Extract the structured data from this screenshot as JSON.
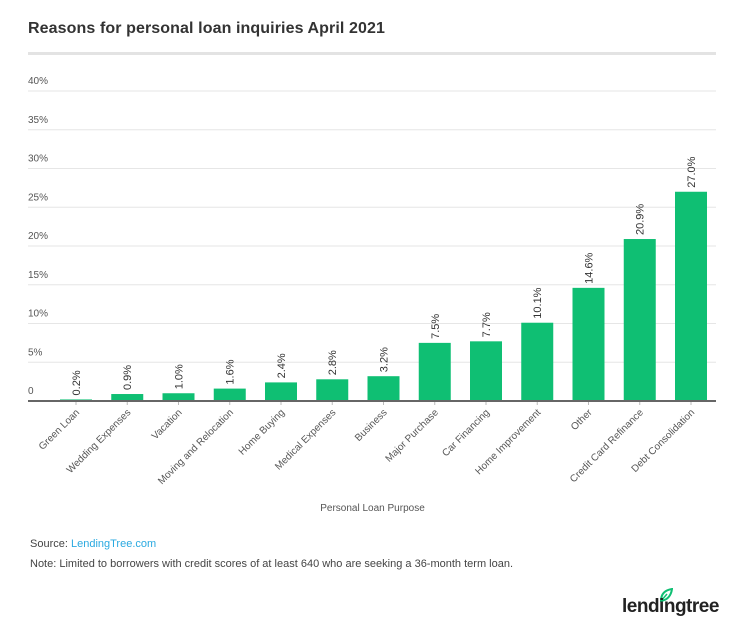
{
  "chart_data": {
    "type": "bar",
    "title": "Reasons for personal loan inquiries April 2021",
    "xlabel": "Personal Loan Purpose",
    "ylabel": "",
    "ylim": [
      0,
      40
    ],
    "yticks": [
      0,
      5,
      10,
      15,
      20,
      25,
      30,
      35,
      40
    ],
    "ytick_labels": [
      "0",
      "5%",
      "10%",
      "15%",
      "20%",
      "25%",
      "30%",
      "35%",
      "40%"
    ],
    "grid": true,
    "categories": [
      "Green Loan",
      "Wedding Expenses",
      "Vacation",
      "Moving and Relocation",
      "Home Buying",
      "Medical Expenses",
      "Business",
      "Major Purchase",
      "Car Financing",
      "Home Improvement",
      "Other",
      "Credit Card Refinance",
      "Debt Consolidation"
    ],
    "values": [
      0.2,
      0.9,
      1.0,
      1.6,
      2.4,
      2.8,
      3.2,
      7.5,
      7.7,
      10.1,
      14.6,
      20.9,
      27.0
    ],
    "data_labels": [
      "0.2%",
      "0.9%",
      "1.0%",
      "1.6%",
      "2.4%",
      "2.8%",
      "3.2%",
      "7.5%",
      "7.7%",
      "10.1%",
      "14.6%",
      "20.9%",
      "27.0%"
    ],
    "bar_color": "#0fbf73"
  },
  "footer": {
    "source_label": "Source: ",
    "source_link": "LendingTree.com",
    "note": "Note: Limited to borrowers with credit scores of at least 640 who are seeking a 36-month term loan.",
    "logo_text": "lendingtree",
    "logo_icon": "leaf-icon"
  },
  "colors": {
    "accent": "#0fbf73",
    "link": "#2aa9e0"
  }
}
